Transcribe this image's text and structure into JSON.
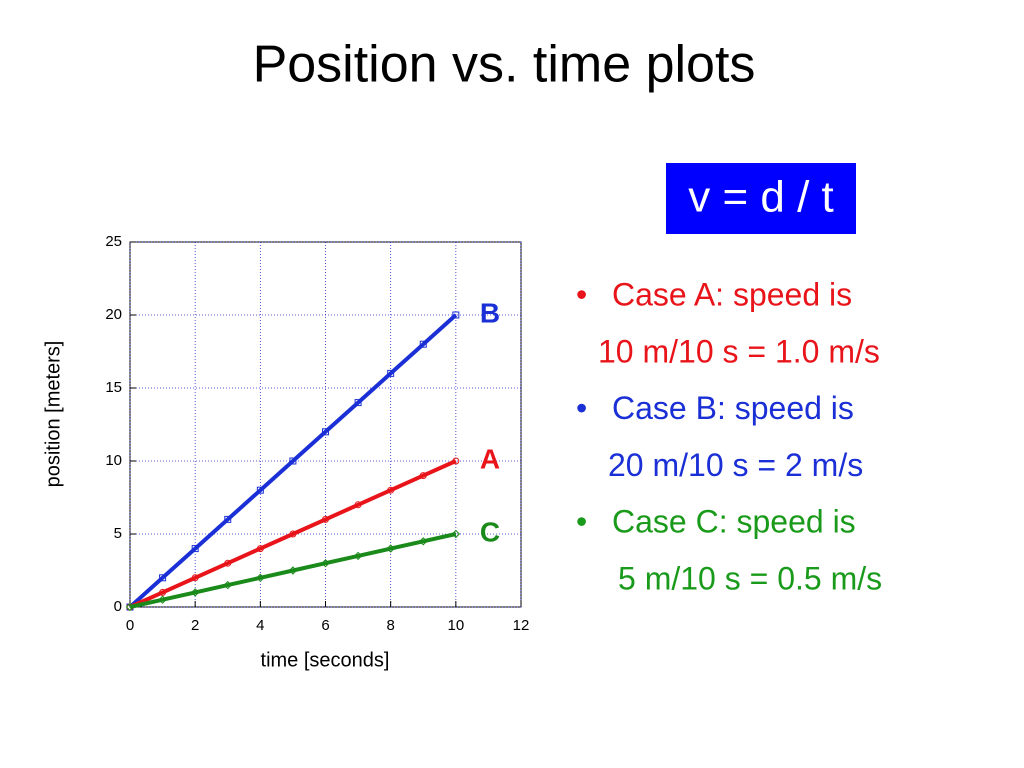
{
  "title": "Position vs. time plots",
  "formula": "v = d / t",
  "bullets": [
    {
      "text": "Case A: speed is",
      "detail": "10 m/10 s = 1.0 m/s",
      "color": "#e8141a"
    },
    {
      "text": "Case B: speed is",
      "detail": "20 m/10 s = 2 m/s",
      "color": "#1a2fd6"
    },
    {
      "text": "Case C: speed is",
      "detail": "5 m/10 s = 0.5 m/s",
      "color": "#1a9a1a"
    }
  ],
  "chart_data": {
    "type": "line",
    "x_label": "time [seconds]",
    "y_label": "position [meters]",
    "x": [
      0,
      1,
      2,
      3,
      4,
      5,
      6,
      7,
      8,
      9,
      10
    ],
    "series": [
      {
        "name": "B",
        "color": "#1a2fd6",
        "marker": "square",
        "values": [
          0,
          2,
          4,
          6,
          8,
          10,
          12,
          14,
          16,
          18,
          20
        ]
      },
      {
        "name": "A",
        "color": "#e8141a",
        "marker": "circle",
        "values": [
          0,
          1,
          2,
          3,
          4,
          5,
          6,
          7,
          8,
          9,
          10
        ]
      },
      {
        "name": "C",
        "color": "#1a8a1a",
        "marker": "diamond",
        "values": [
          0,
          0.5,
          1,
          1.5,
          2,
          2.5,
          3,
          3.5,
          4,
          4.5,
          5
        ]
      }
    ],
    "xlim": [
      0,
      12
    ],
    "xticks": [
      0,
      2,
      4,
      6,
      8,
      10,
      12
    ],
    "ylim": [
      0,
      25
    ],
    "yticks": [
      0,
      5,
      10,
      15,
      20,
      25
    ],
    "grid": true
  }
}
